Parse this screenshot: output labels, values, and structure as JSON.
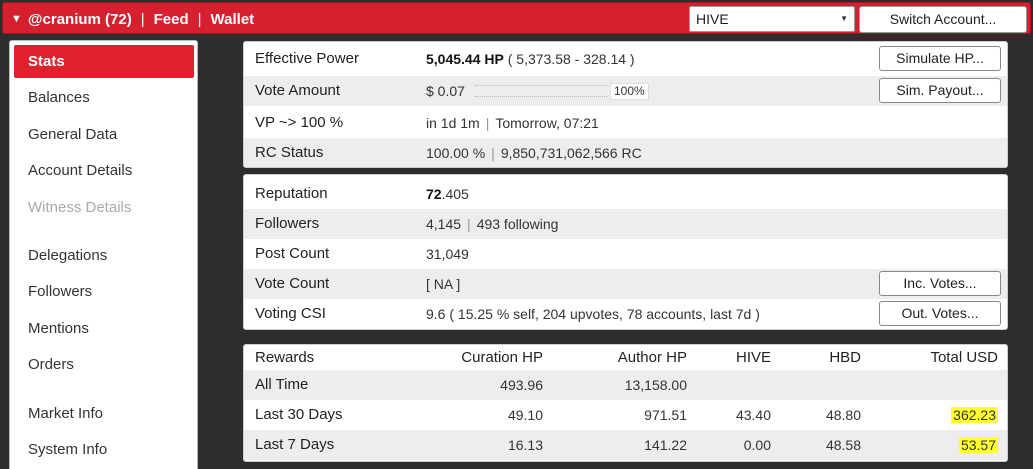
{
  "header": {
    "account": "@cranium (72)",
    "feed": "Feed",
    "wallet": "Wallet",
    "chain_select": "HIVE",
    "switch_account": "Switch Account...",
    "accent_color": "#d6202f"
  },
  "sidebar": {
    "items": [
      {
        "label": "Stats",
        "active": true
      },
      {
        "label": "Balances"
      },
      {
        "label": "General Data"
      },
      {
        "label": "Account Details"
      },
      {
        "label": "Witness Details",
        "disabled": true
      },
      {
        "label": "Delegations"
      },
      {
        "label": "Followers"
      },
      {
        "label": "Mentions"
      },
      {
        "label": "Orders"
      },
      {
        "label": "Market Info"
      },
      {
        "label": "System Info"
      }
    ]
  },
  "stats": {
    "effective_power_label": "Effective Power",
    "effective_power_value": "5,045.44 HP",
    "effective_power_detail": "( 5,373.58 - 328.14 )",
    "simulate_hp": "Simulate HP...",
    "vote_amount_label": "Vote Amount",
    "vote_amount_value": "$ 0.07",
    "vote_weight": "100%",
    "sim_payout": "Sim. Payout...",
    "vp_label": "VP ~> 100 %",
    "vp_time": "in 1d 1m",
    "vp_when": "Tomorrow, 07:21",
    "rc_label": "RC Status",
    "rc_pct": "100.00 %",
    "rc_value": "9,850,731,062,566 RC",
    "reputation_label": "Reputation",
    "reputation_int": "72",
    "reputation_dec": ".405",
    "followers_label": "Followers",
    "followers_value": "4,145",
    "following_value": "493 following",
    "post_count_label": "Post Count",
    "post_count_value": "31,049",
    "vote_count_label": "Vote Count",
    "vote_count_value": "[ NA ]",
    "inc_votes": "Inc. Votes...",
    "csi_label": "Voting CSI",
    "csi_value": "9.6 ( 15.25 % self, 204 upvotes, 78 accounts, last 7d )",
    "out_votes": "Out. Votes..."
  },
  "rewards": {
    "headers": [
      "Rewards",
      "Curation HP",
      "Author HP",
      "HIVE",
      "HBD",
      "Total USD"
    ],
    "rows": [
      {
        "period": "All Time",
        "curation": "493.96",
        "author": "13,158.00",
        "hive": "",
        "hbd": "",
        "usd": ""
      },
      {
        "period": "Last 30 Days",
        "curation": "49.10",
        "author": "971.51",
        "hive": "43.40",
        "hbd": "48.80",
        "usd": "362.23"
      },
      {
        "period": "Last 7 Days",
        "curation": "16.13",
        "author": "141.22",
        "hive": "0.00",
        "hbd": "48.58",
        "usd": "53.57"
      }
    ]
  }
}
